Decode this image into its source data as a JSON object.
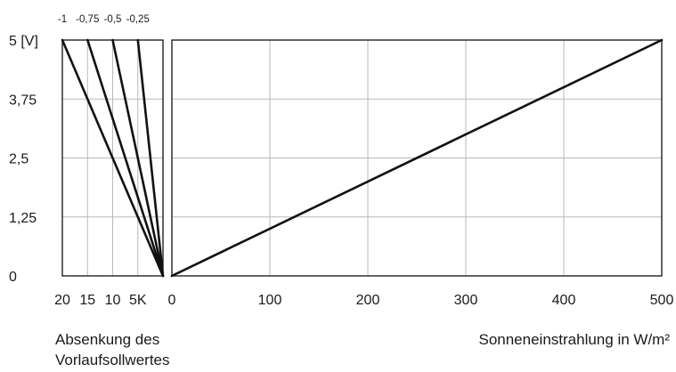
{
  "chart_data": [
    {
      "type": "line",
      "xlabel": [
        "Absenkung des",
        "Vorlaufsollwertes"
      ],
      "ylabel": "",
      "x_tick_labels": [
        "20",
        "15",
        "10",
        "5K"
      ],
      "x_ticks": [
        20,
        15,
        10,
        5
      ],
      "xlim": [
        20,
        0
      ],
      "ylim": [
        0,
        5
      ],
      "y_tick_labels": [
        "5  [V]",
        "3,75",
        "2,5",
        "1,25",
        "0"
      ],
      "y_ticks": [
        5,
        3.75,
        2.5,
        1.25,
        0
      ],
      "top_labels": [
        "-1",
        "-0,75",
        "-0,5",
        "-0,25"
      ],
      "top_label_x": [
        20,
        15,
        10,
        5
      ],
      "grid": true,
      "series": [
        {
          "points": [
            [
              20,
              5
            ],
            [
              0,
              0
            ]
          ]
        },
        {
          "points": [
            [
              15,
              5
            ],
            [
              0,
              0
            ]
          ]
        },
        {
          "points": [
            [
              10,
              5
            ],
            [
              0,
              0
            ]
          ]
        },
        {
          "points": [
            [
              5,
              5
            ],
            [
              0,
              0
            ]
          ]
        }
      ]
    },
    {
      "type": "line",
      "xlabel": "Sonneneinstrahlung in W/m²",
      "ylabel": "",
      "x_tick_labels": [
        "0",
        "100",
        "200",
        "300",
        "400",
        "500"
      ],
      "x_ticks": [
        0,
        100,
        200,
        300,
        400,
        500
      ],
      "xlim": [
        0,
        500
      ],
      "ylim": [
        0,
        5
      ],
      "grid": true,
      "series": [
        {
          "points": [
            [
              0,
              0
            ],
            [
              500,
              5
            ]
          ]
        }
      ]
    }
  ]
}
